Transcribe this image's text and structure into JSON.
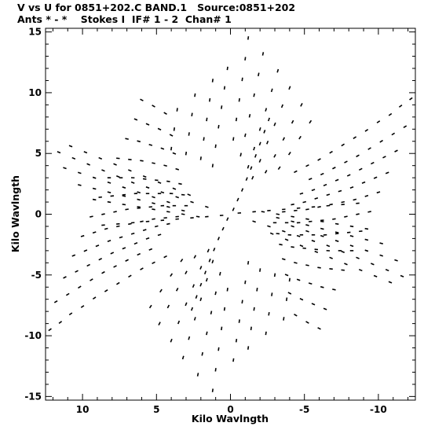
{
  "header": {
    "line1": "V vs U for 0851+202.C BAND.1   Source:0851+202",
    "line2": "Ants * - *    Stokes I  IF# 1 - 2  Chan# 1"
  },
  "chart_data": {
    "type": "scatter",
    "title": "V vs U for 0851+202.C BAND.1   Source:0851+202",
    "subtitle": "Ants * - *    Stokes I  IF# 1 - 2  Chan# 1",
    "xlabel": "Kilo Wavlngth",
    "ylabel": "Kilo Wavlngth",
    "xlim": [
      12.5,
      -12.5
    ],
    "ylim": [
      -15.3,
      15.3
    ],
    "x_ticks": [
      10,
      5,
      0,
      -5,
      -10
    ],
    "x_tick_labels": [
      "10",
      "5",
      "0",
      "-5",
      "-10"
    ],
    "y_ticks": [
      15,
      10,
      5,
      0,
      -5,
      -10,
      -15
    ],
    "y_tick_labels": [
      "15",
      "10",
      "5",
      "0",
      "-5",
      "-10",
      "-15"
    ],
    "x_reversed": true,
    "grid": false,
    "colors": {
      "points": "#000000",
      "axes": "#000000",
      "background": "#ffffff"
    },
    "series": [
      {
        "description_of_tracks": "conjugate-symmetric uv-coverage tracks of a snapshot/earth-rotation synthesis",
        "tracks": [
          {
            "u": [
              -12.2,
              -11.5,
              -10.8,
              -10.0,
              -9.2,
              -8.4,
              -7.6,
              -6.8,
              -6.0,
              -5.2,
              -4.4
            ],
            "v": [
              9.5,
              8.9,
              8.2,
              7.6,
              6.9,
              6.3,
              5.7,
              5.1,
              4.5,
              4.0,
              3.5
            ]
          },
          {
            "u": [
              -11.8,
              -11.0,
              -10.2,
              -9.4,
              -8.6,
              -7.8,
              -7.0,
              -6.2,
              -5.4
            ],
            "v": [
              7.2,
              6.6,
              6.0,
              5.4,
              4.8,
              4.3,
              3.8,
              3.3,
              2.9
            ]
          },
          {
            "u": [
              -11.2,
              -10.4,
              -9.6,
              -8.8,
              -8.0,
              -7.2,
              -6.4,
              -5.6,
              -4.8
            ],
            "v": [
              5.2,
              4.7,
              4.2,
              3.7,
              3.2,
              2.8,
              2.4,
              2.0,
              1.7
            ]
          },
          {
            "u": [
              -10.6,
              -9.8,
              -9.0,
              -8.2,
              -7.4,
              -6.6,
              -5.8,
              -5.0,
              -4.2
            ],
            "v": [
              3.4,
              3.0,
              2.6,
              2.2,
              1.9,
              1.6,
              1.3,
              1.0,
              0.8
            ]
          },
          {
            "u": [
              -10.0,
              -9.2,
              -8.4,
              -7.6,
              -6.8,
              -6.0,
              -5.2,
              -4.4,
              -3.6
            ],
            "v": [
              1.8,
              1.5,
              1.2,
              1.0,
              0.8,
              0.6,
              0.4,
              0.3,
              0.2
            ]
          },
          {
            "u": [
              -9.4,
              -8.6,
              -7.8,
              -7.0,
              -6.2,
              -5.4,
              -4.6,
              -3.8,
              -3.0
            ],
            "v": [
              0.2,
              0.0,
              -0.2,
              -0.4,
              -0.5,
              -0.6,
              -0.7,
              -0.7,
              -0.7
            ]
          },
          {
            "u": [
              -8.8,
              -8.0,
              -7.2,
              -6.4,
              -5.6,
              -4.8,
              -4.0,
              -3.2
            ],
            "v": [
              -1.4,
              -1.5,
              -1.6,
              -1.7,
              -1.7,
              -1.7,
              -1.7,
              -1.6
            ]
          },
          {
            "u": [
              -8.2,
              -7.4,
              -6.6,
              -5.8,
              -5.0,
              -4.2,
              -3.4
            ],
            "v": [
              -3.0,
              -3.0,
              -3.0,
              -2.9,
              -2.8,
              -2.7,
              -2.5
            ]
          },
          {
            "u": [
              -7.6,
              -6.8,
              -6.0,
              -5.2,
              -4.4,
              -3.6
            ],
            "v": [
              -4.6,
              -4.5,
              -4.4,
              -4.2,
              -4.0,
              -3.7
            ]
          },
          {
            "u": [
              -7.0,
              -6.2,
              -5.4,
              -4.6,
              -3.8
            ],
            "v": [
              -6.2,
              -6.0,
              -5.7,
              -5.4,
              -5.0
            ]
          },
          {
            "u": [
              -6.4,
              -5.6,
              -4.8,
              -4.0
            ],
            "v": [
              -7.8,
              -7.4,
              -7.0,
              -6.5
            ]
          },
          {
            "u": [
              -6.0,
              -5.2,
              -4.4
            ],
            "v": [
              -9.4,
              -8.9,
              -8.3
            ]
          },
          {
            "u": [
              -1.2,
              -1.0,
              -0.8,
              -0.6,
              -0.4,
              -0.2
            ],
            "v": [
              14.5,
              12.8,
              11.1,
              9.4,
              7.8,
              6.2
            ]
          },
          {
            "u": [
              -2.2,
              -1.9,
              -1.6,
              -1.3,
              -1.0,
              -0.7
            ],
            "v": [
              13.2,
              11.5,
              9.8,
              8.1,
              6.5,
              4.9
            ]
          },
          {
            "u": [
              -3.2,
              -2.8,
              -2.4,
              -2.0,
              -1.6,
              -1.2
            ],
            "v": [
              11.8,
              10.2,
              8.6,
              7.0,
              5.4,
              3.9
            ]
          },
          {
            "u": [
              -4.0,
              -3.5,
              -3.0,
              -2.5,
              -2.0,
              -1.5
            ],
            "v": [
              10.4,
              8.9,
              7.4,
              5.9,
              4.4,
              3.0
            ]
          },
          {
            "u": [
              -4.8,
              -4.2,
              -3.6,
              -3.0,
              -2.4
            ],
            "v": [
              9.0,
              7.6,
              6.2,
              4.8,
              3.5
            ]
          },
          {
            "u": [
              -5.4,
              -4.7,
              -4.0,
              -3.3
            ],
            "v": [
              7.6,
              6.3,
              5.0,
              3.8
            ]
          },
          {
            "u": [
              -2.6,
              -2.3,
              -2.0,
              -1.7,
              -1.4,
              -1.1,
              -0.8,
              -0.5,
              -0.2
            ],
            "v": [
              7.8,
              6.8,
              5.8,
              4.8,
              3.8,
              2.9,
              2.0,
              1.2,
              0.4
            ]
          },
          {
            "u": [
              -8.6,
              -7.6,
              -6.6,
              -5.6,
              -4.6,
              -3.6,
              -2.6,
              -1.6,
              -0.6
            ],
            "v": [
              0.9,
              0.8,
              0.7,
              0.6,
              0.5,
              0.4,
              0.3,
              0.2,
              0.1
            ]
          },
          {
            "u": [
              0.2,
              0.4,
              0.6,
              0.8,
              1.0,
              1.2
            ],
            "v": [
              12.0,
              10.4,
              8.8,
              7.2,
              5.6,
              4.0
            ]
          },
          {
            "u": [
              1.2,
              1.4,
              1.6,
              1.8,
              2.0
            ],
            "v": [
              11.0,
              9.4,
              7.8,
              6.2,
              4.6
            ]
          },
          {
            "u": [
              2.4,
              2.6,
              2.8,
              3.0
            ],
            "v": [
              9.8,
              8.2,
              6.6,
              5.0
            ]
          },
          {
            "u": [
              3.6,
              3.8,
              4.0
            ],
            "v": [
              8.6,
              7.0,
              5.4
            ]
          },
          {
            "u": [
              11.6,
              10.6,
              9.6,
              8.6,
              7.6,
              6.6,
              5.6,
              4.6,
              3.6,
              2.6,
              1.6
            ],
            "v": [
              5.1,
              4.6,
              4.1,
              3.6,
              3.1,
              2.6,
              2.2,
              1.8,
              1.4,
              1.0,
              0.6
            ]
          },
          {
            "u": [
              10.8,
              9.8,
              8.8,
              7.8,
              6.8,
              5.8,
              4.8,
              3.8,
              2.8
            ],
            "v": [
              5.6,
              5.1,
              4.6,
              4.1,
              3.6,
              3.1,
              2.6,
              2.1,
              1.6
            ]
          },
          {
            "u": [
              11.2,
              10.2,
              9.2,
              8.2,
              7.2,
              6.2,
              5.2,
              4.2
            ],
            "v": [
              3.8,
              3.4,
              3.0,
              2.6,
              2.2,
              1.8,
              1.4,
              1.0
            ]
          },
          {
            "u": [
              10.2,
              9.2,
              8.2,
              7.2,
              6.2,
              5.2,
              4.2,
              3.2
            ],
            "v": [
              2.4,
              2.1,
              1.8,
              1.5,
              1.2,
              0.9,
              0.6,
              0.3
            ]
          },
          {
            "u": [
              9.2,
              8.2,
              7.2,
              6.2,
              5.2,
              4.2,
              3.2,
              2.2
            ],
            "v": [
              1.2,
              1.0,
              0.8,
              0.6,
              0.4,
              0.2,
              0.0,
              -0.2
            ]
          }
        ]
      }
    ]
  }
}
